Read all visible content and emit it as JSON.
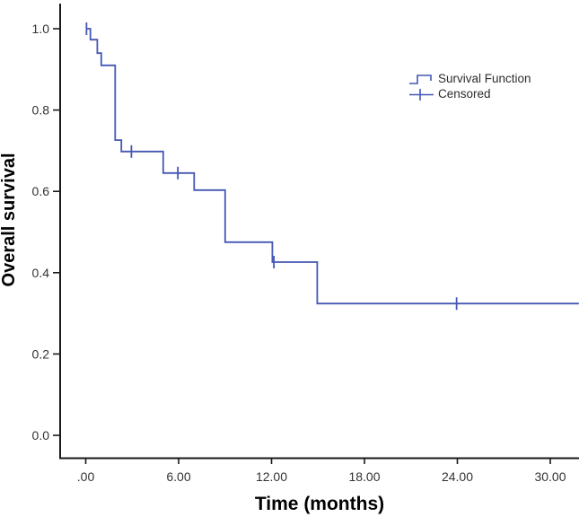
{
  "figure": {
    "background": "#ffffff"
  },
  "chart_data": {
    "type": "line",
    "subtype": "kaplan_meier_step_function",
    "title": "",
    "xlabel": "Time (months)",
    "ylabel": "Overall survival",
    "grid": false,
    "x_axis": {
      "min": -1.65,
      "max": 31.85,
      "ticks": [
        {
          "v": 0,
          "label": ".00"
        },
        {
          "v": 6,
          "label": "6.00"
        },
        {
          "v": 12,
          "label": "12.00"
        },
        {
          "v": 18,
          "label": "18.00"
        },
        {
          "v": 24,
          "label": "24.00"
        },
        {
          "v": 30,
          "label": "30.00"
        }
      ]
    },
    "y_axis": {
      "min": 0.0,
      "max": 1.0,
      "ticks": [
        {
          "v": 0.0,
          "label": "0.0"
        },
        {
          "v": 0.2,
          "label": "0.2"
        },
        {
          "v": 0.4,
          "label": "0.4"
        },
        {
          "v": 0.6,
          "label": "0.6"
        },
        {
          "v": 0.8,
          "label": "0.8"
        },
        {
          "v": 1.0,
          "label": "1.0"
        }
      ]
    },
    "legend": {
      "position": "upper_right",
      "items": [
        {
          "label": "Survival Function",
          "marker": "step_line"
        },
        {
          "label": "Censored",
          "marker": "plus"
        }
      ]
    },
    "series": [
      {
        "name": "Survival Function",
        "color": "#4457b4",
        "steps": [
          [
            0.0,
            1.0
          ],
          [
            0.3,
            0.973
          ],
          [
            0.75,
            0.94
          ],
          [
            1.0,
            0.91
          ],
          [
            1.9,
            0.726
          ],
          [
            2.3,
            0.698
          ],
          [
            5.0,
            0.645
          ],
          [
            7.0,
            0.603
          ],
          [
            9.0,
            0.475
          ],
          [
            12.05,
            0.426
          ],
          [
            14.95,
            0.324
          ]
        ],
        "end_time": 31.85
      }
    ],
    "censored_points": [
      [
        0.05,
        1.0
      ],
      [
        2.95,
        0.698
      ],
      [
        5.95,
        0.645
      ],
      [
        12.15,
        0.426
      ],
      [
        23.95,
        0.324
      ]
    ],
    "colors": {
      "curve": "#4457b4",
      "axis": "#1a1a1a",
      "tick_label": "#333333",
      "axis_label": "#000000",
      "legend_text": "#2d2d2d",
      "background": "#ffffff"
    }
  }
}
